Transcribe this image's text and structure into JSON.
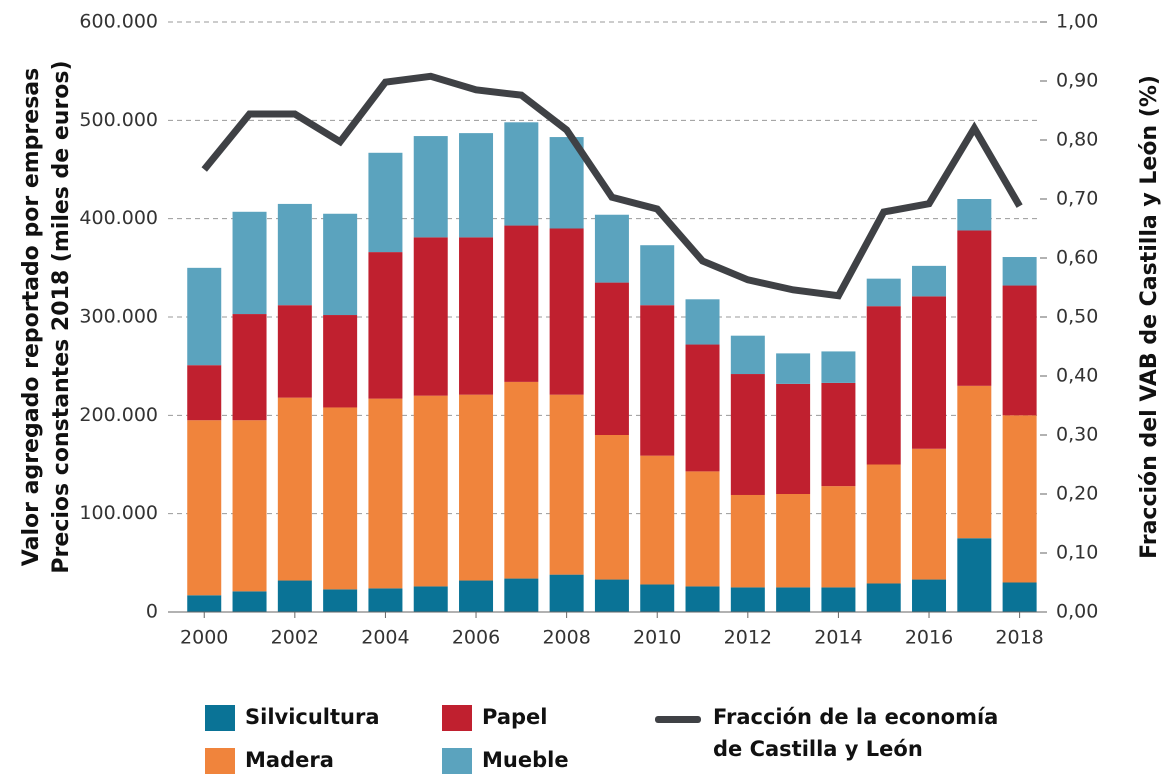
{
  "chart_data": {
    "type": "bar+line",
    "ylabel": [
      "Valor agregado reportado por empresas",
      "Precios constantes 2018 (miles de euros)"
    ],
    "y2label": "Fracción del VAB de Castilla y León (%)",
    "x": [
      2000,
      2001,
      2002,
      2003,
      2004,
      2005,
      2006,
      2007,
      2008,
      2009,
      2010,
      2011,
      2012,
      2013,
      2014,
      2015,
      2016,
      2017,
      2018
    ],
    "xlim": [
      1999.2,
      2018.45
    ],
    "xticks": [
      2000,
      2002,
      2004,
      2006,
      2008,
      2010,
      2012,
      2014,
      2016,
      2018
    ],
    "ylim": [
      0,
      600000
    ],
    "yticks": [
      0,
      {
        "value": 100000,
        "label": "100.000"
      },
      {
        "value": 200000,
        "label": "200.000"
      },
      {
        "value": 300000,
        "label": "300.000"
      },
      {
        "value": 400000,
        "label": "400.000"
      },
      {
        "value": 500000,
        "label": "500.000"
      },
      {
        "value": 600000,
        "label": "600.000"
      }
    ],
    "y2lim": [
      0,
      1
    ],
    "y2ticks": [
      {
        "value": 0,
        "label": "0,00"
      },
      {
        "value": 0.1,
        "label": "0,10"
      },
      {
        "value": 0.2,
        "label": "0,20"
      },
      {
        "value": 0.3,
        "label": "0,30"
      },
      {
        "value": 0.4,
        "label": "0,40"
      },
      {
        "value": 0.5,
        "label": "0,50"
      },
      {
        "value": 0.6,
        "label": "0,60"
      },
      {
        "value": 0.7,
        "label": "0,70"
      },
      {
        "value": 0.8,
        "label": "0,80"
      },
      {
        "value": 0.9,
        "label": "0,90"
      },
      {
        "value": 1,
        "label": "1,00"
      }
    ],
    "grid": true,
    "series": [
      {
        "name": "Silvicultura",
        "type": "bar",
        "color": "#0a7396",
        "values": [
          17000,
          21000,
          32000,
          23000,
          24000,
          26000,
          32000,
          34000,
          38000,
          33000,
          28000,
          26000,
          25000,
          25000,
          25000,
          29000,
          33000,
          75000,
          30000
        ]
      },
      {
        "name": "Madera",
        "type": "bar",
        "color": "#f0843c",
        "values": [
          178000,
          174000,
          186000,
          185000,
          193000,
          194000,
          189000,
          200000,
          183000,
          147000,
          131000,
          117000,
          94000,
          95000,
          103000,
          121000,
          133000,
          155000,
          170000
        ]
      },
      {
        "name": "Papel",
        "type": "bar",
        "color": "#c0202f",
        "values": [
          56000,
          108000,
          94000,
          94000,
          149000,
          161000,
          160000,
          159000,
          169000,
          155000,
          153000,
          129000,
          123000,
          112000,
          105000,
          161000,
          155000,
          158000,
          132000
        ]
      },
      {
        "name": "Mueble",
        "type": "bar",
        "color": "#5ba3be",
        "values": [
          99000,
          104000,
          103000,
          103000,
          101000,
          103000,
          106000,
          105000,
          93000,
          69000,
          61000,
          46000,
          39000,
          31000,
          32000,
          28000,
          31000,
          32000,
          29000
        ]
      },
      {
        "name": "Fracción de la economía de Castilla y León",
        "type": "line",
        "axis": "y2",
        "color": "#3f4145",
        "values": [
          0.75,
          0.844,
          0.844,
          0.797,
          0.898,
          0.908,
          0.885,
          0.876,
          0.817,
          0.703,
          0.683,
          0.595,
          0.563,
          0.546,
          0.536,
          0.678,
          0.692,
          0.82,
          0.688
        ]
      }
    ]
  }
}
